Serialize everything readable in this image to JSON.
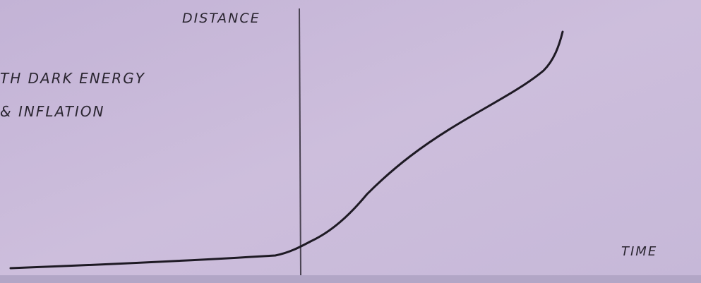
{
  "labels": {
    "y_axis": "DISTANCE",
    "x_axis": "TIME",
    "annotation": [
      "TH DARK ENERGY",
      "& INFLATION"
    ]
  }
}
